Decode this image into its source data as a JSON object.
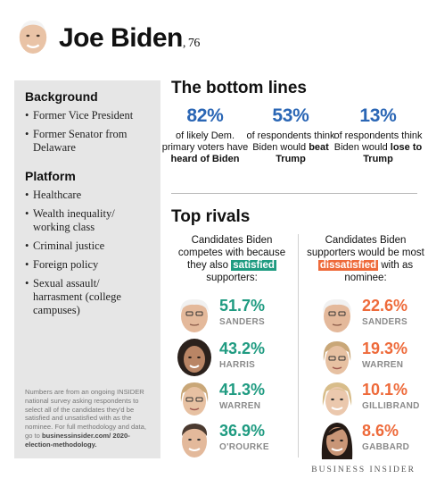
{
  "header": {
    "name": "Joe Biden",
    "age": ", 76"
  },
  "sidebar": {
    "background_heading": "Background",
    "background_items": [
      "Former Vice President",
      "Former Senator from Delaware"
    ],
    "platform_heading": "Platform",
    "platform_items": [
      "Healthcare",
      "Wealth inequality/ working class",
      "Criminal justice",
      "Foreign policy",
      "Sexual assault/ harrasment (college campuses)"
    ],
    "note": "Numbers are from an ongoing INSIDER national survey asking respondents to select all of the candidates they'd be satisfied and unsatisfied with as the nominee. For full methodology and data, go to",
    "note_link": "businessinsider.com/ 2020-election-methodology."
  },
  "bottom_lines": {
    "title": "The bottom lines",
    "stats": [
      {
        "value": "82%",
        "pre": "of likely Dem. primary voters have ",
        "bold": "heard of Biden",
        "post": ""
      },
      {
        "value": "53%",
        "pre": "of respondents think Biden would ",
        "bold": "beat Trump",
        "post": ""
      },
      {
        "value": "13%",
        "pre": "of respondents think Biden would ",
        "bold": "lose to Trump",
        "post": ""
      }
    ]
  },
  "top_rivals": {
    "title": "Top rivals",
    "satisfied_head_pre": "Candidates Biden competes with because they also",
    "satisfied_word": "satisfied",
    "satisfied_head_post": "supporters:",
    "dissatisfied_head_pre": "Candidates Biden supporters would be most",
    "dissatisfied_word": "dissatisfied",
    "dissatisfied_head_post": "with as nominee:",
    "satisfied": [
      {
        "pct": "51.7%",
        "name": "SANDERS"
      },
      {
        "pct": "43.2%",
        "name": "HARRIS"
      },
      {
        "pct": "41.3%",
        "name": "WARREN"
      },
      {
        "pct": "36.9%",
        "name": "O'ROURKE"
      }
    ],
    "dissatisfied": [
      {
        "pct": "22.6%",
        "name": "SANDERS"
      },
      {
        "pct": "19.3%",
        "name": "WARREN"
      },
      {
        "pct": "10.1%",
        "name": "GILLIBRAND"
      },
      {
        "pct": "8.6%",
        "name": "GABBARD"
      }
    ]
  },
  "footer": {
    "logo": "BUSINESS INSIDER"
  },
  "colors": {
    "blue": "#2a66b5",
    "green": "#1f9b81",
    "orange": "#ee6a3a",
    "panel": "#e6e6e6"
  }
}
